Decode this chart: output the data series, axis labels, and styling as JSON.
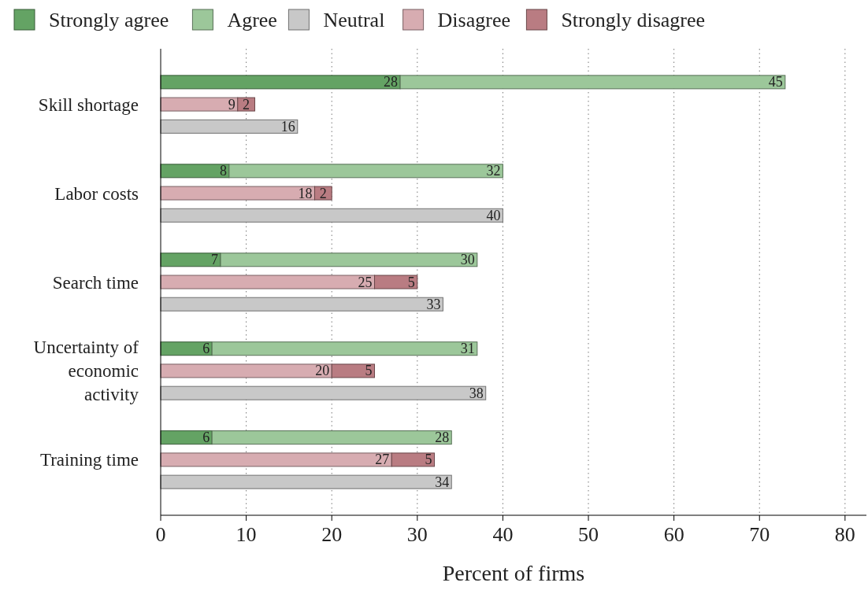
{
  "chart_data": {
    "type": "bar",
    "orientation": "horizontal",
    "stacked": true,
    "xlabel": "Percent of firms",
    "categories": [
      null,
      "Skill shortage",
      null,
      null,
      null,
      "Labor costs",
      null,
      null,
      null,
      "Search time",
      null,
      null,
      null,
      "Uncertainty of economic activity",
      null,
      null,
      null,
      "Training time",
      null
    ],
    "series": [
      {
        "name": "Strongly agree",
        "color": "#64a364",
        "values": [
          28,
          null,
          null,
          null,
          8,
          null,
          null,
          null,
          7,
          null,
          null,
          null,
          6,
          null,
          null,
          null,
          6,
          null,
          null
        ]
      },
      {
        "name": "Agree",
        "color": "#9cc79a",
        "values": [
          45,
          null,
          null,
          null,
          32,
          null,
          null,
          null,
          30,
          null,
          null,
          null,
          31,
          null,
          null,
          null,
          28,
          null,
          null
        ]
      },
      {
        "name": "Neutral",
        "color": "#c8c8c8",
        "values": [
          null,
          null,
          16,
          null,
          null,
          null,
          40,
          null,
          null,
          null,
          33,
          null,
          null,
          null,
          38,
          null,
          null,
          null,
          34
        ]
      },
      {
        "name": "Disagree",
        "color": "#d7acb1",
        "values": [
          null,
          9,
          null,
          null,
          null,
          18,
          null,
          null,
          null,
          25,
          null,
          null,
          null,
          20,
          null,
          null,
          null,
          27,
          null
        ]
      },
      {
        "name": "Strongly disagree",
        "color": "#b97c82",
        "values": [
          null,
          2,
          null,
          null,
          null,
          2,
          null,
          null,
          null,
          5,
          null,
          null,
          null,
          5,
          null,
          null,
          null,
          5,
          null
        ]
      }
    ],
    "xlim": [
      0,
      82.5
    ],
    "xticks": [
      0,
      10,
      20,
      30,
      40,
      50,
      60,
      70,
      80
    ],
    "grid": "x",
    "legend": "top",
    "data_labels": true
  }
}
